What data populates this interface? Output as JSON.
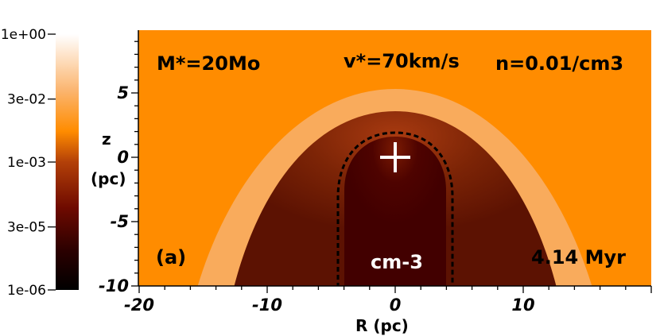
{
  "chart_data": {
    "type": "heatmap",
    "xlabel": "R (pc)",
    "ylabel_lines": [
      "z",
      "(pc)"
    ],
    "xlim": [
      -20,
      20
    ],
    "ylim": [
      -10,
      10
    ],
    "x_ticks": [
      {
        "value": -20,
        "label": "-20"
      },
      {
        "value": -10,
        "label": "-10"
      },
      {
        "value": 0,
        "label": "0"
      },
      {
        "value": 10,
        "label": "10"
      }
    ],
    "y_ticks": [
      {
        "value": 5,
        "label": "5"
      },
      {
        "value": 0,
        "label": "0"
      },
      {
        "value": -5,
        "label": "-5"
      },
      {
        "value": -10,
        "label": "-10"
      }
    ],
    "colorbar": {
      "scale": "log",
      "range": [
        1e-06,
        1
      ],
      "ticks": [
        {
          "value": 1,
          "label": "1e+00"
        },
        {
          "value": 0.03,
          "label": "3e-02"
        },
        {
          "value": 0.001,
          "label": "1e-03"
        },
        {
          "value": 3e-05,
          "label": "3e-05"
        },
        {
          "value": 1e-06,
          "label": "1e-06"
        }
      ]
    },
    "annotations": {
      "mass": "M*=20Mo",
      "velocity": "v*=70km/s",
      "density": "n=0.01/cm3",
      "panel": "(a)",
      "unit": "cm-3",
      "time": "4.14 Myr"
    },
    "star_position": [
      0,
      0
    ],
    "regions": [
      {
        "name": "ambient medium",
        "level": 0.01
      },
      {
        "name": "outer shocked shell",
        "level": 0.03
      },
      {
        "name": "inner shocked wind",
        "level": 0.001
      },
      {
        "name": "wake",
        "level": 3e-05
      }
    ],
    "colors": {
      "ambient": "#ff8c00",
      "outer_shell": "#f9ab5c",
      "inner_region": "#8b2c0a",
      "wake": "#470000",
      "contour": "#000000",
      "star": "#ffffff"
    }
  }
}
